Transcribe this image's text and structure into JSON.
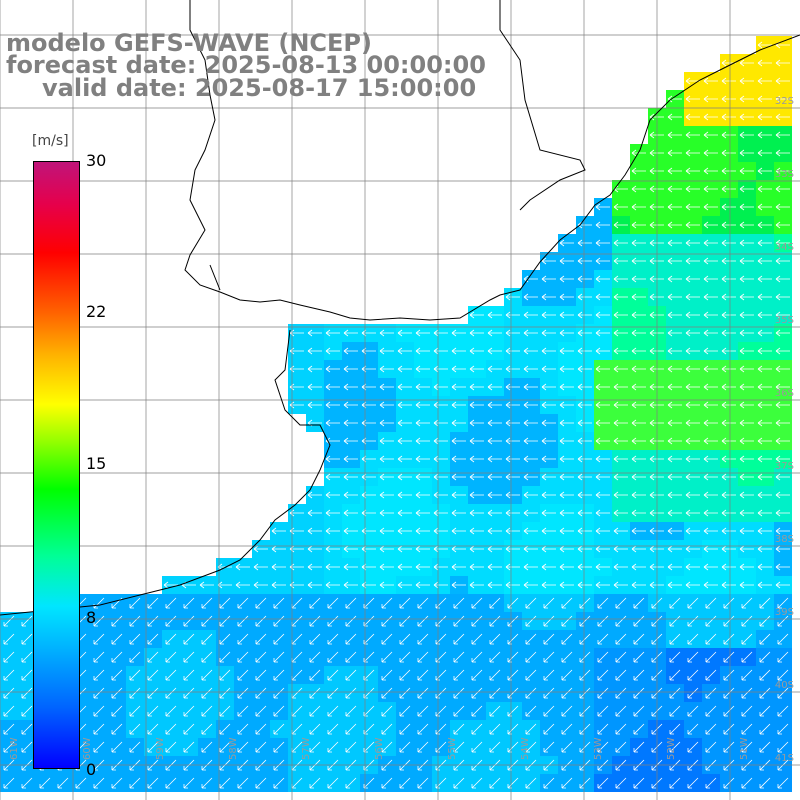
{
  "title": {
    "model": "modelo GEFS-WAVE (NCEP)",
    "forecast": "forecast date: 2025-08-13 00:00:00",
    "valid": "valid date: 2025-08-17 15:00:00"
  },
  "colorbar": {
    "unit": "[m/s]",
    "ticks": [
      "30",
      "22",
      "15",
      "8",
      "0"
    ],
    "tick_values": [
      30,
      22,
      15,
      8,
      0
    ],
    "min": 0,
    "max": 30,
    "colors": [
      "#0000ff",
      "#0064ff",
      "#00b4ff",
      "#00e6ff",
      "#00ff96",
      "#00ff00",
      "#96ff00",
      "#ffff00",
      "#ffb400",
      "#ff6400",
      "#ff0000",
      "#e6004b",
      "#c0147a"
    ]
  },
  "map": {
    "land_color": "#ffffff",
    "grid_color": "#7f7f7f",
    "coast_color": "#000000",
    "arrow_color": "#ffffff",
    "lat_labels": [
      "32S",
      "33S",
      "34S",
      "35S",
      "36S",
      "37S",
      "38S",
      "39S",
      "40S",
      "41S"
    ],
    "lon_labels": [
      "61W",
      "60W",
      "59W",
      "58W",
      "57W",
      "56W",
      "55W",
      "54W",
      "53W",
      "52W",
      "51W"
    ]
  }
}
